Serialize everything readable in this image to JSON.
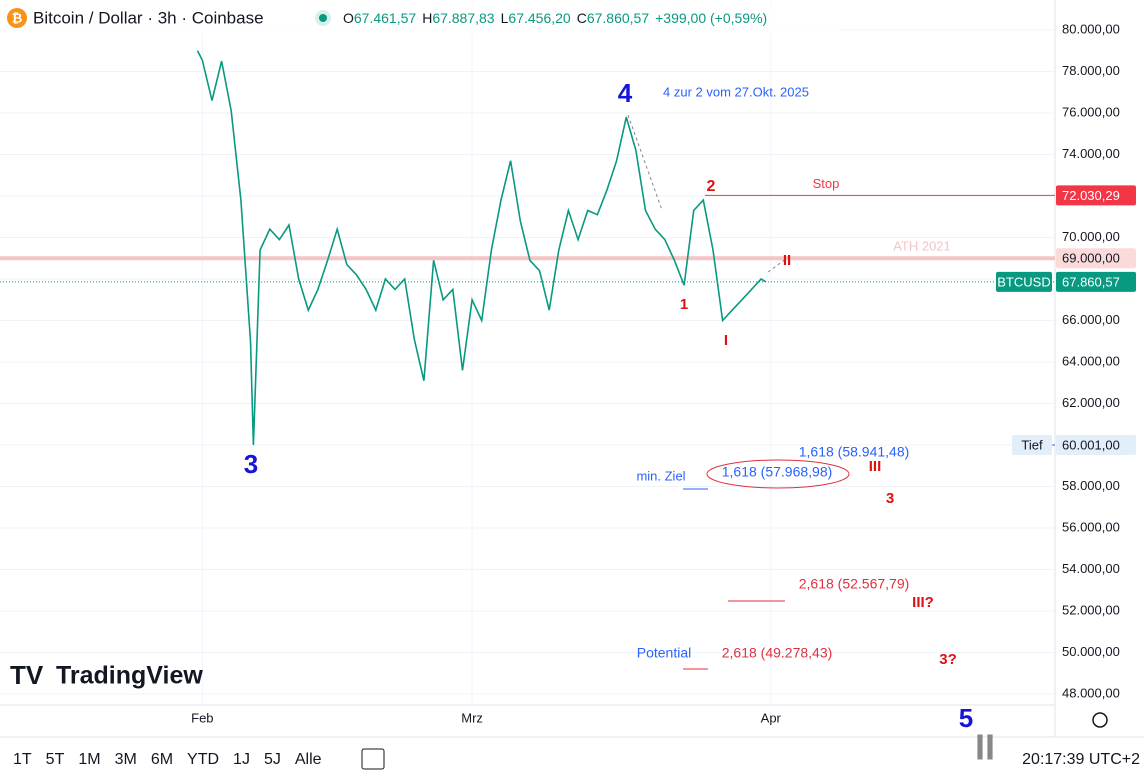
{
  "header": {
    "title": "Bitcoin / Dollar · 3h · Coinbase",
    "ohlc": [
      {
        "k": "O",
        "v": "67.461,57"
      },
      {
        "k": "H",
        "v": "67.887,83"
      },
      {
        "k": "L",
        "v": "67.456,20"
      },
      {
        "k": "C",
        "v": "67.860,57"
      }
    ],
    "change": "+399,00 (+0,59%)"
  },
  "chart_data": {
    "type": "line",
    "xlim": [
      -21,
      88.5
    ],
    "ylim": [
      48000,
      80000
    ],
    "xticks": [
      {
        "value": 0,
        "label": "Feb"
      },
      {
        "value": 28,
        "label": "Mrz"
      },
      {
        "value": 59,
        "label": "Apr"
      }
    ],
    "yticks": [
      {
        "value": 48000,
        "label": "48.000,00"
      },
      {
        "value": 50000,
        "label": "50.000,00"
      },
      {
        "value": 52000,
        "label": "52.000,00"
      },
      {
        "value": 54000,
        "label": "54.000,00"
      },
      {
        "value": 56000,
        "label": "56.000,00"
      },
      {
        "value": 58000,
        "label": "58.000,00"
      },
      {
        "value": 60000,
        "label": "60.000,00"
      },
      {
        "value": 62000,
        "label": "62.000,00"
      },
      {
        "value": 64000,
        "label": "64.000,00"
      },
      {
        "value": 66000,
        "label": "66.000,00"
      },
      {
        "value": 68000,
        "label": "68.000,00"
      },
      {
        "value": 70000,
        "label": "70.000,00"
      },
      {
        "value": 72000,
        "label": "72.000,00"
      },
      {
        "value": 74000,
        "label": "74.000,00"
      },
      {
        "value": 76000,
        "label": "76.000,00"
      },
      {
        "value": 78000,
        "label": "78.000,00"
      },
      {
        "value": 80000,
        "label": "80.000,00"
      }
    ],
    "grid": true,
    "x": [
      -0.5,
      0,
      1,
      2,
      3,
      4,
      5,
      5.3,
      6,
      7,
      8,
      9,
      10,
      11,
      12,
      13,
      14,
      15,
      16,
      17,
      18,
      19,
      20,
      21,
      22,
      23,
      24,
      25,
      26,
      27,
      28,
      29,
      30,
      31,
      32,
      33,
      34,
      35,
      36,
      37,
      38,
      39,
      40,
      41,
      42,
      43,
      44,
      45,
      46,
      47,
      48,
      49,
      50,
      51,
      52,
      53,
      54,
      55,
      56,
      57,
      58,
      58.5
    ],
    "series": [
      {
        "name": "BTCUSD",
        "color": "#089981",
        "values": [
          79000,
          78550,
          76600,
          78500,
          76100,
          71800,
          65000,
          60001,
          69400,
          70400,
          69900,
          70600,
          68000,
          66500,
          67500,
          68900,
          70400,
          68700,
          68200,
          67500,
          66500,
          68000,
          67500,
          68000,
          65100,
          63100,
          68900,
          67000,
          67500,
          63600,
          67000,
          66000,
          69400,
          71800,
          73700,
          70800,
          68900,
          68400,
          66500,
          69400,
          71300,
          69900,
          71300,
          71100,
          72300,
          73700,
          75800,
          74200,
          71300,
          70400,
          69900,
          68900,
          67700,
          71300,
          71800,
          69400,
          66000,
          66500,
          67000,
          67500,
          68000,
          67860.57
        ]
      }
    ],
    "price_lines": [
      {
        "value": 72030.29,
        "label": "72.030,29",
        "color": "#f23645",
        "text": "Stop"
      },
      {
        "value": 69000,
        "label": "69.000,00",
        "color": "#f5c4c4",
        "text": "ATH 2021"
      },
      {
        "value": 67860.57,
        "label": "67.860,57",
        "color": "#089981",
        "name": "BTCUSD"
      },
      {
        "value": 60001,
        "label": "60.001,00",
        "color": "#e3eefb",
        "name": "Tief"
      }
    ],
    "annotations": [
      {
        "text": "3",
        "color": "#1515d8"
      },
      {
        "text": "4",
        "color": "#1515d8"
      },
      {
        "text": "4 zur 2 vom 27.Okt. 2025",
        "color": "#2962ff"
      },
      {
        "text": "2",
        "color": "#d11"
      },
      {
        "text": "1",
        "color": "#d11"
      },
      {
        "text": "I",
        "color": "#d11"
      },
      {
        "text": "II",
        "color": "#d11"
      },
      {
        "text": "1,618 (58.941,48)",
        "color": "#2962ff"
      },
      {
        "text": "min. Ziel",
        "color": "#2962ff"
      },
      {
        "text": "1,618 (57.968,98)",
        "color": "#2962ff"
      },
      {
        "text": "III",
        "color": "#d11"
      },
      {
        "text": "3",
        "color": "#d11"
      },
      {
        "text": "2,618 (52.567,79)",
        "color": "#e0303e"
      },
      {
        "text": "III?",
        "color": "#d11"
      },
      {
        "text": "Potential",
        "color": "#2962ff"
      },
      {
        "text": "2,618 (49.278,43)",
        "color": "#e0303e"
      },
      {
        "text": "3?",
        "color": "#d11"
      },
      {
        "text": "5",
        "color": "#1515d8"
      },
      {
        "text": "II",
        "color": "#888"
      }
    ]
  },
  "toolbar": {
    "ranges": [
      "1T",
      "5T",
      "1M",
      "3M",
      "6M",
      "YTD",
      "1J",
      "5J",
      "Alle"
    ],
    "clock": "20:17:39 UTC+2"
  },
  "logo": "TradingView"
}
